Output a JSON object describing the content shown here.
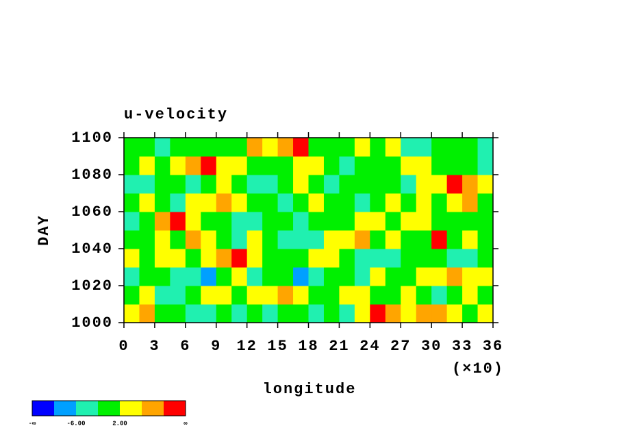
{
  "chart_data": {
    "type": "contour",
    "title": "u-velocity",
    "x_label": "longitude",
    "x_multiplier_label": "(×10)",
    "y_label": "DAY",
    "xlim": [
      0,
      36
    ],
    "xticks": [
      0,
      3,
      6,
      9,
      12,
      15,
      18,
      21,
      24,
      27,
      30,
      33,
      36
    ],
    "ylim": [
      1000,
      1100
    ],
    "yticks": [
      1000,
      1020,
      1040,
      1060,
      1080,
      1100
    ],
    "colors": [
      "#0000ff",
      "#00a0ff",
      "#20f0b0",
      "#00f000",
      "#ffff00",
      "#ffa500",
      "#ff0000"
    ],
    "colorbar_labels": [
      "-∞",
      "-6.00",
      "2.00",
      "∞"
    ],
    "z": [
      [
        4,
        5,
        3,
        3,
        2,
        2,
        3,
        2,
        3,
        2,
        3,
        3,
        2,
        3,
        2,
        4,
        6,
        5,
        4,
        5,
        5,
        4,
        3,
        4
      ],
      [
        3,
        4,
        2,
        2,
        3,
        4,
        4,
        3,
        4,
        4,
        5,
        4,
        3,
        3,
        4,
        4,
        3,
        3,
        4,
        3,
        2,
        3,
        4,
        3
      ],
      [
        2,
        3,
        3,
        2,
        2,
        1,
        3,
        4,
        2,
        3,
        3,
        1,
        2,
        3,
        3,
        2,
        4,
        3,
        3,
        4,
        4,
        5,
        4,
        4
      ],
      [
        4,
        3,
        4,
        4,
        3,
        4,
        5,
        6,
        4,
        3,
        3,
        3,
        4,
        4,
        3,
        2,
        2,
        2,
        3,
        3,
        3,
        2,
        2,
        3
      ],
      [
        3,
        3,
        4,
        3,
        5,
        4,
        3,
        2,
        4,
        3,
        2,
        2,
        2,
        4,
        4,
        5,
        3,
        4,
        3,
        3,
        6,
        3,
        4,
        3
      ],
      [
        2,
        3,
        5,
        6,
        4,
        3,
        3,
        2,
        2,
        3,
        3,
        2,
        3,
        3,
        3,
        4,
        4,
        3,
        4,
        4,
        3,
        3,
        3,
        3
      ],
      [
        3,
        4,
        3,
        2,
        4,
        4,
        5,
        4,
        3,
        3,
        2,
        3,
        4,
        3,
        3,
        2,
        3,
        4,
        3,
        4,
        3,
        4,
        5,
        3
      ],
      [
        2,
        2,
        3,
        3,
        2,
        3,
        4,
        3,
        2,
        2,
        3,
        4,
        3,
        2,
        3,
        3,
        3,
        3,
        2,
        4,
        4,
        6,
        5,
        4
      ],
      [
        3,
        4,
        3,
        4,
        5,
        6,
        4,
        4,
        3,
        3,
        3,
        4,
        4,
        3,
        2,
        3,
        3,
        3,
        4,
        4,
        3,
        3,
        3,
        2
      ],
      [
        3,
        3,
        2,
        3,
        3,
        3,
        3,
        3,
        5,
        4,
        5,
        6,
        3,
        3,
        3,
        4,
        3,
        4,
        2,
        2,
        3,
        3,
        3,
        2
      ]
    ]
  }
}
